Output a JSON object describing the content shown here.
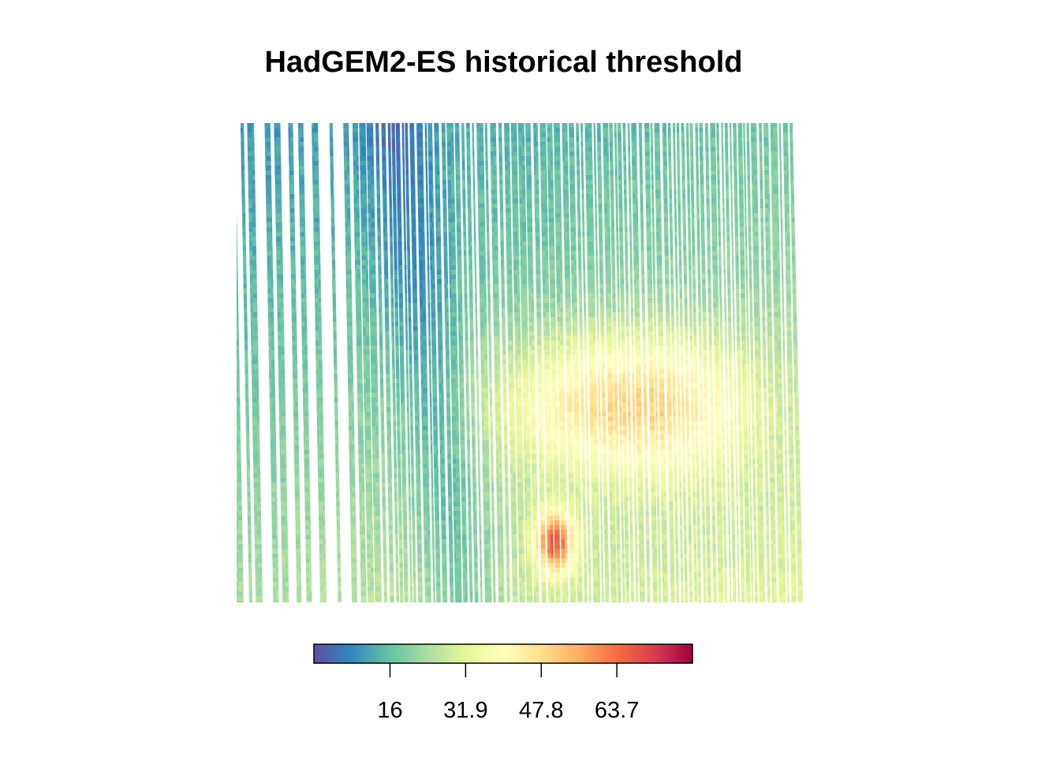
{
  "title": "HadGEM2-ES historical threshold",
  "legend": {
    "palette": [
      "#5e4fa2",
      "#3288bd",
      "#66c2a5",
      "#abdda4",
      "#e6f598",
      "#ffffbf",
      "#fee08b",
      "#fdae61",
      "#f46d43",
      "#d53e4f",
      "#9e0142"
    ],
    "range": [
      0,
      79.6
    ],
    "ticks": [
      {
        "value": 16,
        "label": "16"
      },
      {
        "value": 31.9,
        "label": "31.9"
      },
      {
        "value": 47.8,
        "label": "47.8"
      },
      {
        "value": 63.7,
        "label": "63.7"
      }
    ]
  },
  "chart_data": {
    "type": "heatmap",
    "title": "HadGEM2-ES historical threshold",
    "colorscale": "Spectral (reversed)",
    "legend_placement": "bottom",
    "value_range": [
      0,
      79.6
    ],
    "colorbar_ticks": [
      16,
      31.9,
      47.8,
      63.7
    ]
  }
}
